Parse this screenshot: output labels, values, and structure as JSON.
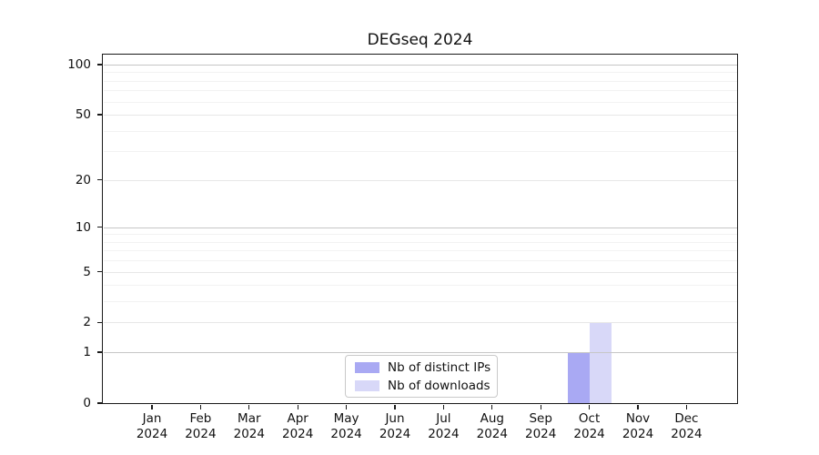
{
  "figure": {
    "title": "DEGseq 2024",
    "background": "#ffffff",
    "axis_color": "#1a1a1a"
  },
  "chart_data": {
    "type": "bar",
    "title": "DEGseq 2024",
    "categories": [
      "Jan 2024",
      "Feb 2024",
      "Mar 2024",
      "Apr 2024",
      "May 2024",
      "Jun 2024",
      "Jul 2024",
      "Aug 2024",
      "Sep 2024",
      "Oct 2024",
      "Nov 2024",
      "Dec 2024"
    ],
    "series": [
      {
        "name": "Nb of distinct IPs",
        "color": "#a9a9f3",
        "values": [
          0,
          0,
          0,
          0,
          0,
          0,
          0,
          0,
          0,
          1,
          0,
          0
        ]
      },
      {
        "name": "Nb of downloads",
        "color": "#d8d8f8",
        "values": [
          0,
          0,
          0,
          0,
          0,
          0,
          0,
          0,
          0,
          2,
          0,
          0
        ]
      }
    ],
    "xlabel": "",
    "ylabel": "",
    "yscale": "log10(1+x)",
    "ylim": [
      0,
      115
    ],
    "y_ticks": [
      "0",
      "1",
      "2",
      "5",
      "10",
      "20",
      "50",
      "100"
    ],
    "y_mid_gridlines": [
      2,
      5,
      20,
      50
    ],
    "y_major_gridlines": [
      1,
      10,
      100
    ],
    "y_minor_gridlines": [
      3,
      4,
      6,
      7,
      8,
      9,
      30,
      40,
      60,
      70,
      80,
      90
    ],
    "grid": true,
    "legend_position": "lower center",
    "grid_major_color": "#c6c6c6",
    "grid_mid_color": "#e7e7e7",
    "grid_minor_color": "#f2f2f2"
  }
}
